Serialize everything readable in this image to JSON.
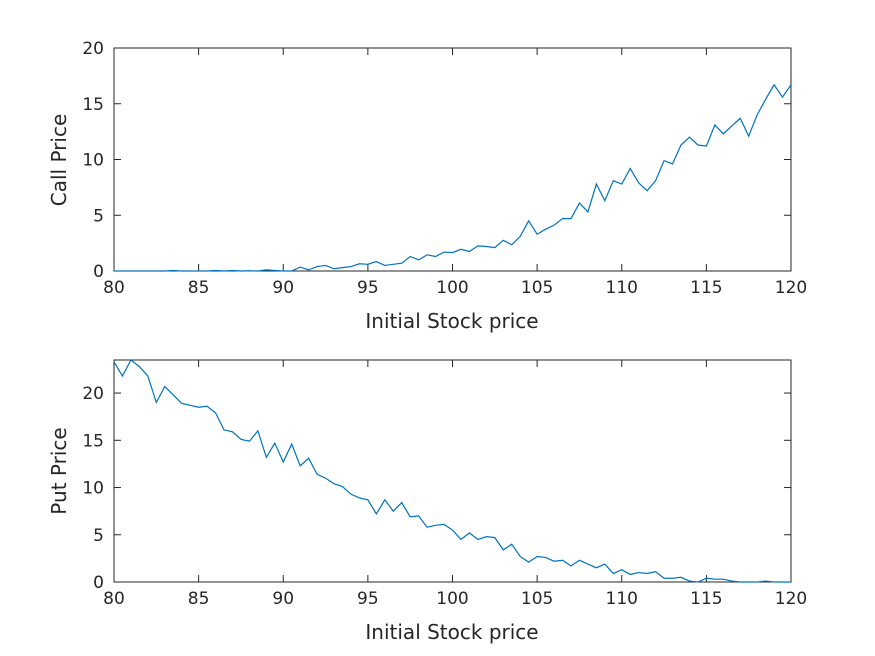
{
  "figure": {
    "background": "#ffffff",
    "line_color": "#0072bd",
    "axis_color": "#262626"
  },
  "chart_data": [
    {
      "type": "line",
      "xlabel": "Initial Stock price",
      "ylabel": "Call Price",
      "xlim": [
        80,
        120
      ],
      "ylim": [
        0,
        20
      ],
      "xticks": [
        80,
        85,
        90,
        95,
        100,
        105,
        110,
        115,
        120
      ],
      "yticks": [
        0,
        5,
        10,
        15,
        20
      ],
      "grid": false,
      "series": [
        {
          "x": [
            80,
            80.5,
            81,
            81.5,
            82,
            82.5,
            83,
            83.5,
            84,
            84.5,
            85,
            85.5,
            86,
            86.5,
            87,
            87.5,
            88,
            88.5,
            89,
            89.5,
            90,
            90.5,
            91,
            91.5,
            92,
            92.5,
            93,
            93.5,
            94,
            94.5,
            95,
            95.5,
            96,
            96.5,
            97,
            97.5,
            98,
            98.5,
            99,
            99.5,
            100,
            100.5,
            101,
            101.5,
            102,
            102.5,
            103,
            103.5,
            104,
            104.5,
            105,
            105.5,
            106,
            106.5,
            107,
            107.5,
            108,
            108.5,
            109,
            109.5,
            110,
            110.5,
            111,
            111.5,
            112,
            112.5,
            113,
            113.5,
            114,
            114.5,
            115,
            115.5,
            116,
            116.5,
            117,
            117.5,
            118,
            118.5,
            119,
            119.5,
            120
          ],
          "y": [
            0,
            0,
            0,
            0,
            0,
            0,
            0,
            0.05,
            0,
            0,
            0,
            0,
            0.05,
            0,
            0.05,
            0,
            0.02,
            0,
            0.1,
            0.05,
            0,
            0,
            0.35,
            0.1,
            0.4,
            0.5,
            0.2,
            0.3,
            0.4,
            0.65,
            0.6,
            0.85,
            0.5,
            0.6,
            0.7,
            1.3,
            1.0,
            1.45,
            1.3,
            1.7,
            1.65,
            1.95,
            1.75,
            2.25,
            2.2,
            2.1,
            2.75,
            2.35,
            3.1,
            4.5,
            3.3,
            3.75,
            4.1,
            4.7,
            4.7,
            6.1,
            5.3,
            7.8,
            6.3,
            8.1,
            7.8,
            9.2,
            7.9,
            7.2,
            8.1,
            9.9,
            9.6,
            11.3,
            12.0,
            11.3,
            11.2,
            13.1,
            12.3,
            13.0,
            13.7,
            12.1,
            14.0,
            15.4,
            16.7,
            15.6,
            16.7
          ]
        }
      ]
    },
    {
      "type": "line",
      "xlabel": "Initial Stock price",
      "ylabel": "Put Price",
      "xlim": [
        80,
        120
      ],
      "ylim": [
        0,
        23.5
      ],
      "xticks": [
        80,
        85,
        90,
        95,
        100,
        105,
        110,
        115,
        120
      ],
      "yticks": [
        0,
        5,
        10,
        15,
        20
      ],
      "grid": false,
      "series": [
        {
          "x": [
            80,
            80.5,
            81,
            81.5,
            82,
            82.5,
            83,
            83.5,
            84,
            84.5,
            85,
            85.5,
            86,
            86.5,
            87,
            87.5,
            88,
            88.5,
            89,
            89.5,
            90,
            90.5,
            91,
            91.5,
            92,
            92.5,
            93,
            93.5,
            94,
            94.5,
            95,
            95.5,
            96,
            96.5,
            97,
            97.5,
            98,
            98.5,
            99,
            99.5,
            100,
            100.5,
            101,
            101.5,
            102,
            102.5,
            103,
            103.5,
            104,
            104.5,
            105,
            105.5,
            106,
            106.5,
            107,
            107.5,
            108,
            108.5,
            109,
            109.5,
            110,
            110.5,
            111,
            111.5,
            112,
            112.5,
            113,
            113.5,
            114,
            114.5,
            115,
            115.5,
            116,
            116.5,
            117,
            117.5,
            118,
            118.5,
            119,
            119.5,
            120
          ],
          "y": [
            23.3,
            21.8,
            23.5,
            22.8,
            21.8,
            19.0,
            20.7,
            19.8,
            18.9,
            18.7,
            18.5,
            18.6,
            17.9,
            16.1,
            15.9,
            15.1,
            14.9,
            16.0,
            13.2,
            14.7,
            12.7,
            14.6,
            12.3,
            13.1,
            11.4,
            11.0,
            10.4,
            10.1,
            9.3,
            8.9,
            8.7,
            7.2,
            8.7,
            7.5,
            8.4,
            6.9,
            7.0,
            5.8,
            6.0,
            6.1,
            5.5,
            4.5,
            5.2,
            4.5,
            4.8,
            4.7,
            3.4,
            4.0,
            2.7,
            2.1,
            2.7,
            2.6,
            2.2,
            2.3,
            1.7,
            2.3,
            1.9,
            1.5,
            1.9,
            0.9,
            1.3,
            0.8,
            1.0,
            0.9,
            1.1,
            0.4,
            0.4,
            0.5,
            0.1,
            0.0,
            0.4,
            0.3,
            0.3,
            0.1,
            0.0,
            0.0,
            0.0,
            0.1,
            0.0,
            0.0,
            0.0
          ]
        }
      ]
    }
  ]
}
